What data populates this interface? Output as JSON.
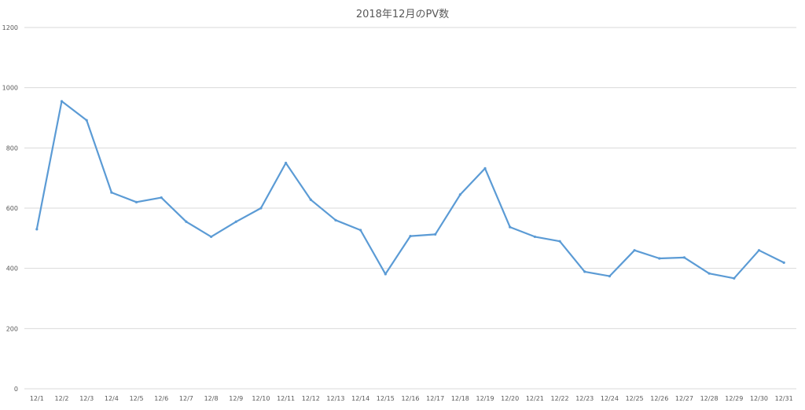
{
  "chart_data": {
    "type": "line",
    "title": "2018年12月のPV数",
    "xlabel": "",
    "ylabel": "",
    "ylim": [
      0,
      1200
    ],
    "yticks": [
      0,
      200,
      400,
      600,
      800,
      1000,
      1200
    ],
    "grid": true,
    "legend": "none",
    "categories": [
      "12/1",
      "12/2",
      "12/3",
      "12/4",
      "12/5",
      "12/6",
      "12/7",
      "12/8",
      "12/9",
      "12/10",
      "12/11",
      "12/12",
      "12/13",
      "12/14",
      "12/15",
      "12/16",
      "12/17",
      "12/18",
      "12/19",
      "12/20",
      "12/21",
      "12/22",
      "12/23",
      "12/24",
      "12/25",
      "12/26",
      "12/27",
      "12/28",
      "12/29",
      "12/30",
      "12/31"
    ],
    "series": [
      {
        "color": "#5b9bd5",
        "values": [
          530,
          955,
          892,
          652,
          620,
          635,
          555,
          505,
          555,
          600,
          750,
          628,
          560,
          527,
          381,
          507,
          513,
          645,
          732,
          537,
          505,
          490,
          389,
          374,
          460,
          433,
          436,
          383,
          367,
          460,
          419
        ]
      }
    ]
  }
}
